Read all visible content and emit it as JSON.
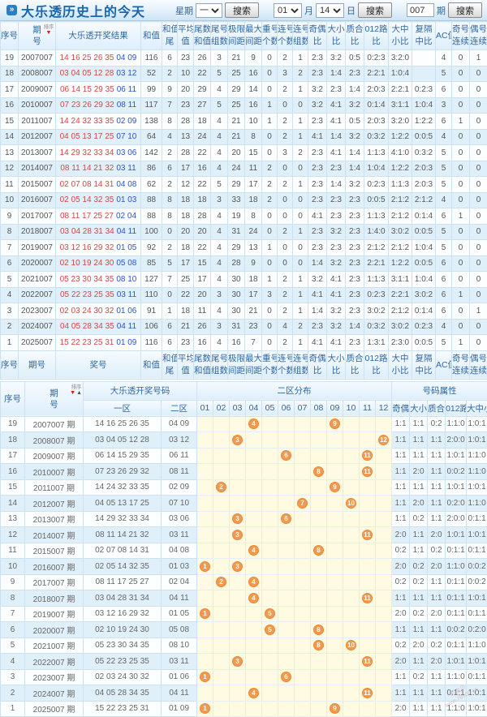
{
  "header": {
    "title": "大乐透历史上的今天",
    "week_label": "星期",
    "week_value": "一",
    "search_label": "搜索",
    "month_value": "01",
    "month_label": "月",
    "day_value": "14",
    "day_label": "日",
    "issue_value": "007",
    "issue_label": "期"
  },
  "icons": {
    "bullet": "»",
    "sort_down": "▼",
    "sort_up": "▲"
  },
  "table1": {
    "seq_header": "序号",
    "issue_header_top": "期",
    "issue_header_bottom": "号",
    "sort_label": "排序",
    "result_header": "大乐透开奖结果",
    "sum_header": "和值",
    "pair_headers": [
      [
        "和值",
        "尾"
      ],
      [
        "平均",
        "值"
      ],
      [
        "尾数",
        "和值"
      ],
      [
        "尾号",
        "组数"
      ],
      [
        "极限",
        "间距"
      ],
      [
        "最大",
        "间距"
      ],
      [
        "重号",
        "个数"
      ],
      [
        "连号",
        "个数"
      ],
      [
        "连号",
        "组数"
      ],
      [
        "奇偶",
        "比"
      ],
      [
        "大小",
        "比"
      ],
      [
        "质合",
        "比"
      ],
      [
        "012路",
        "比"
      ],
      [
        "大中",
        "小比"
      ],
      [
        "复隔",
        "中比"
      ],
      [
        "AC值",
        ""
      ],
      [
        "奇号",
        "连续"
      ],
      [
        "偶号",
        "连续"
      ]
    ],
    "footer": {
      "seq": "序号",
      "issue": "期号",
      "result": "奖号",
      "sum": "和值"
    },
    "rows": [
      {
        "seq": "19",
        "issue": "2007007",
        "front": "14 16 25 26 35",
        "back": "04 09",
        "vals": [
          "116",
          "6",
          "23",
          "26",
          "3",
          "21",
          "9",
          "0",
          "2",
          "1",
          "2:3",
          "3:2",
          "0:5",
          "0:2:3",
          "3:2:0",
          "",
          "4",
          "0",
          "1"
        ]
      },
      {
        "seq": "18",
        "issue": "2008007",
        "front": "03 04 05 12 28",
        "back": "03 12",
        "vals": [
          "52",
          "2",
          "10",
          "22",
          "5",
          "25",
          "16",
          "0",
          "3",
          "2",
          "2:3",
          "1:4",
          "2:3",
          "2:2:1",
          "1:0:4",
          "",
          "5",
          "0",
          "0"
        ]
      },
      {
        "seq": "17",
        "issue": "2009007",
        "front": "06 14 15 29 35",
        "back": "06 11",
        "vals": [
          "99",
          "9",
          "20",
          "29",
          "4",
          "29",
          "14",
          "0",
          "2",
          "1",
          "3:2",
          "2:3",
          "1:4",
          "2:0:3",
          "2:2:1",
          "0:2:3",
          "6",
          "0",
          "0"
        ]
      },
      {
        "seq": "16",
        "issue": "2010007",
        "front": "07 23 26 29 32",
        "back": "08 11",
        "vals": [
          "117",
          "7",
          "23",
          "27",
          "5",
          "25",
          "16",
          "1",
          "0",
          "0",
          "3:2",
          "4:1",
          "3:2",
          "0:1:4",
          "3:1:1",
          "1:0:4",
          "3",
          "0",
          "0"
        ]
      },
      {
        "seq": "15",
        "issue": "2011007",
        "front": "14 24 32 33 35",
        "back": "02 09",
        "vals": [
          "138",
          "8",
          "28",
          "18",
          "4",
          "21",
          "10",
          "1",
          "2",
          "1",
          "2:3",
          "4:1",
          "0:5",
          "2:0:3",
          "3:2:0",
          "1:2:2",
          "6",
          "1",
          "0"
        ]
      },
      {
        "seq": "14",
        "issue": "2012007",
        "front": "04 05 13 17 25",
        "back": "07 10",
        "vals": [
          "64",
          "4",
          "13",
          "24",
          "4",
          "21",
          "8",
          "0",
          "2",
          "1",
          "4:1",
          "1:4",
          "3:2",
          "0:3:2",
          "1:2:2",
          "0:0:5",
          "4",
          "0",
          "0"
        ]
      },
      {
        "seq": "13",
        "issue": "2013007",
        "front": "14 29 32 33 34",
        "back": "03 06",
        "vals": [
          "142",
          "2",
          "28",
          "22",
          "4",
          "20",
          "15",
          "0",
          "3",
          "2",
          "2:3",
          "4:1",
          "1:4",
          "1:1:3",
          "4:1:0",
          "0:3:2",
          "5",
          "0",
          "0"
        ]
      },
      {
        "seq": "12",
        "issue": "2014007",
        "front": "08 11 14 21 32",
        "back": "03 11",
        "vals": [
          "86",
          "6",
          "17",
          "16",
          "4",
          "24",
          "11",
          "2",
          "0",
          "0",
          "2:3",
          "2:3",
          "1:4",
          "1:0:4",
          "1:2:2",
          "2:0:3",
          "5",
          "0",
          "0"
        ]
      },
      {
        "seq": "11",
        "issue": "2015007",
        "front": "02 07 08 14 31",
        "back": "04 08",
        "vals": [
          "62",
          "2",
          "12",
          "22",
          "5",
          "29",
          "17",
          "2",
          "2",
          "1",
          "2:3",
          "1:4",
          "3:2",
          "0:2:3",
          "1:1:3",
          "2:0:3",
          "5",
          "0",
          "0"
        ]
      },
      {
        "seq": "10",
        "issue": "2016007",
        "front": "02 05 14 32 35",
        "back": "01 03",
        "vals": [
          "88",
          "8",
          "18",
          "18",
          "3",
          "33",
          "18",
          "2",
          "0",
          "0",
          "2:3",
          "2:3",
          "2:3",
          "0:0:5",
          "2:1:2",
          "2:1:2",
          "4",
          "0",
          "0"
        ]
      },
      {
        "seq": "9",
        "issue": "2017007",
        "front": "08 11 17 25 27",
        "back": "02 04",
        "vals": [
          "88",
          "8",
          "18",
          "28",
          "4",
          "19",
          "8",
          "0",
          "0",
          "0",
          "4:1",
          "2:3",
          "2:3",
          "1:1:3",
          "2:1:2",
          "0:1:4",
          "6",
          "1",
          "0"
        ]
      },
      {
        "seq": "8",
        "issue": "2018007",
        "front": "03 04 28 31 34",
        "back": "04 11",
        "vals": [
          "100",
          "0",
          "20",
          "20",
          "4",
          "31",
          "24",
          "0",
          "2",
          "1",
          "2:3",
          "3:2",
          "2:3",
          "1:4:0",
          "3:0:2",
          "0:0:5",
          "5",
          "0",
          "0"
        ]
      },
      {
        "seq": "7",
        "issue": "2019007",
        "front": "03 12 16 29 32",
        "back": "01 05",
        "vals": [
          "92",
          "2",
          "18",
          "22",
          "4",
          "29",
          "13",
          "1",
          "0",
          "0",
          "2:3",
          "2:3",
          "2:3",
          "2:1:2",
          "2:1:2",
          "1:0:4",
          "5",
          "0",
          "0"
        ]
      },
      {
        "seq": "6",
        "issue": "2020007",
        "front": "02 10 19 24 30",
        "back": "05 08",
        "vals": [
          "85",
          "5",
          "17",
          "15",
          "4",
          "28",
          "9",
          "0",
          "0",
          "0",
          "1:4",
          "3:2",
          "2:3",
          "2:2:1",
          "1:2:2",
          "0:0:5",
          "6",
          "0",
          "0"
        ]
      },
      {
        "seq": "5",
        "issue": "2021007",
        "front": "05 23 30 34 35",
        "back": "08 10",
        "vals": [
          "127",
          "7",
          "25",
          "17",
          "4",
          "30",
          "18",
          "1",
          "2",
          "1",
          "3:2",
          "4:1",
          "2:3",
          "1:1:3",
          "3:1:1",
          "1:0:4",
          "6",
          "0",
          "0"
        ]
      },
      {
        "seq": "4",
        "issue": "2022007",
        "front": "05 22 23 25 35",
        "back": "03 11",
        "vals": [
          "110",
          "0",
          "22",
          "20",
          "3",
          "30",
          "17",
          "3",
          "2",
          "1",
          "4:1",
          "4:1",
          "2:3",
          "0:2:3",
          "2:2:1",
          "3:0:2",
          "6",
          "1",
          "0"
        ]
      },
      {
        "seq": "3",
        "issue": "2023007",
        "front": "02 03 24 30 32",
        "back": "01 06",
        "vals": [
          "91",
          "1",
          "18",
          "11",
          "4",
          "30",
          "21",
          "0",
          "2",
          "1",
          "1:4",
          "3:2",
          "2:3",
          "3:0:2",
          "2:1:2",
          "0:1:4",
          "6",
          "0",
          "1"
        ]
      },
      {
        "seq": "2",
        "issue": "2024007",
        "front": "04 05 28 34 35",
        "back": "04 11",
        "vals": [
          "106",
          "6",
          "21",
          "26",
          "3",
          "31",
          "23",
          "0",
          "4",
          "2",
          "2:3",
          "3:2",
          "1:4",
          "0:3:2",
          "3:0:2",
          "0:2:3",
          "4",
          "0",
          "0"
        ]
      },
      {
        "seq": "1",
        "issue": "2025007",
        "front": "15 22 23 25 31",
        "back": "01 09",
        "vals": [
          "116",
          "6",
          "23",
          "16",
          "4",
          "16",
          "7",
          "0",
          "2",
          "1",
          "4:1",
          "4:1",
          "2:3",
          "1:3:1",
          "2:3:0",
          "0:0:5",
          "5",
          "1",
          "0"
        ]
      }
    ]
  },
  "table2": {
    "seq_header": "序号",
    "issue_header_top": "期",
    "issue_header_bottom": "号",
    "sort_label": "排序",
    "numbers_group": "大乐透开奖号码",
    "dist_group": "二区分布",
    "attr_group": "号码属性",
    "zone1_header": "一区",
    "zone2_header": "二区",
    "dist_cols": [
      "01",
      "02",
      "03",
      "04",
      "05",
      "06",
      "07",
      "08",
      "09",
      "10",
      "11",
      "12"
    ],
    "attr_headers": [
      "奇偶比",
      "大小比",
      "质合比",
      "012路比",
      "大中小比"
    ],
    "rows": [
      {
        "seq": "19",
        "issue": "2007007 期",
        "zone1": "14 16 25 26 35",
        "zone2": "04 09",
        "balls": [
          4,
          9
        ],
        "attrs": [
          "1:1",
          "1:1",
          "0:2",
          "1:1:0",
          "1:0:1"
        ]
      },
      {
        "seq": "18",
        "issue": "2008007 期",
        "zone1": "03 04 05 12 28",
        "zone2": "03 12",
        "balls": [
          3,
          12
        ],
        "attrs": [
          "1:1",
          "1:1",
          "1:1",
          "2:0:0",
          "1:0:1"
        ]
      },
      {
        "seq": "17",
        "issue": "2009007 期",
        "zone1": "06 14 15 29 35",
        "zone2": "06 11",
        "balls": [
          6,
          11
        ],
        "attrs": [
          "1:1",
          "1:1",
          "1:1",
          "1:0:1",
          "1:1:0"
        ]
      },
      {
        "seq": "16",
        "issue": "2010007 期",
        "zone1": "07 23 26 29 32",
        "zone2": "08 11",
        "balls": [
          8,
          11
        ],
        "attrs": [
          "1:1",
          "2:0",
          "1:1",
          "0:0:2",
          "1:1:0"
        ]
      },
      {
        "seq": "15",
        "issue": "2011007 期",
        "zone1": "14 24 32 33 35",
        "zone2": "02 09",
        "balls": [
          2,
          9
        ],
        "attrs": [
          "1:1",
          "1:1",
          "1:1",
          "1:0:1",
          "1:0:1"
        ]
      },
      {
        "seq": "14",
        "issue": "2012007 期",
        "zone1": "04 05 13 17 25",
        "zone2": "07 10",
        "balls": [
          7,
          10
        ],
        "attrs": [
          "1:1",
          "2:0",
          "1:1",
          "0:2:0",
          "1:1:0"
        ]
      },
      {
        "seq": "13",
        "issue": "2013007 期",
        "zone1": "14 29 32 33 34",
        "zone2": "03 06",
        "balls": [
          3,
          6
        ],
        "attrs": [
          "1:1",
          "0:2",
          "1:1",
          "2:0:0",
          "0:1:1"
        ]
      },
      {
        "seq": "12",
        "issue": "2014007 期",
        "zone1": "08 11 14 21 32",
        "zone2": "03 11",
        "balls": [
          3,
          11
        ],
        "attrs": [
          "2:0",
          "1:1",
          "2:0",
          "1:0:1",
          "1:0:1"
        ]
      },
      {
        "seq": "11",
        "issue": "2015007 期",
        "zone1": "02 07 08 14 31",
        "zone2": "04 08",
        "balls": [
          4,
          8
        ],
        "attrs": [
          "0:2",
          "1:1",
          "0:2",
          "0:1:1",
          "0:1:1"
        ]
      },
      {
        "seq": "10",
        "issue": "2016007 期",
        "zone1": "02 05 14 32 35",
        "zone2": "01 03",
        "balls": [
          1,
          3
        ],
        "attrs": [
          "2:0",
          "0:2",
          "2:0",
          "1:1:0",
          "0:0:2"
        ]
      },
      {
        "seq": "9",
        "issue": "2017007 期",
        "zone1": "08 11 17 25 27",
        "zone2": "02 04",
        "balls": [
          2,
          4
        ],
        "attrs": [
          "0:2",
          "0:2",
          "1:1",
          "0:1:1",
          "0:0:2"
        ]
      },
      {
        "seq": "8",
        "issue": "2018007 期",
        "zone1": "03 04 28 31 34",
        "zone2": "04 11",
        "balls": [
          4,
          11
        ],
        "attrs": [
          "1:1",
          "1:1",
          "1:1",
          "0:1:1",
          "1:0:1"
        ]
      },
      {
        "seq": "7",
        "issue": "2019007 期",
        "zone1": "03 12 16 29 32",
        "zone2": "01 05",
        "balls": [
          1,
          5
        ],
        "attrs": [
          "2:0",
          "0:2",
          "2:0",
          "0:1:1",
          "0:1:1"
        ]
      },
      {
        "seq": "6",
        "issue": "2020007 期",
        "zone1": "02 10 19 24 30",
        "zone2": "05 08",
        "balls": [
          5,
          8
        ],
        "attrs": [
          "1:1",
          "1:1",
          "1:1",
          "0:0:2",
          "0:2:0"
        ]
      },
      {
        "seq": "5",
        "issue": "2021007 期",
        "zone1": "05 23 30 34 35",
        "zone2": "08 10",
        "balls": [
          8,
          10
        ],
        "attrs": [
          "0:2",
          "2:0",
          "0:2",
          "0:1:1",
          "1:1:0"
        ]
      },
      {
        "seq": "4",
        "issue": "2022007 期",
        "zone1": "05 22 23 25 35",
        "zone2": "03 11",
        "balls": [
          3,
          11
        ],
        "attrs": [
          "2:0",
          "1:1",
          "2:0",
          "1:0:1",
          "1:0:1"
        ]
      },
      {
        "seq": "3",
        "issue": "2023007 期",
        "zone1": "02 03 24 30 32",
        "zone2": "01 06",
        "balls": [
          1,
          6
        ],
        "attrs": [
          "1:1",
          "0:2",
          "1:1",
          "1:1:0",
          "0:1:1"
        ]
      },
      {
        "seq": "2",
        "issue": "2024007 期",
        "zone1": "04 05 28 34 35",
        "zone2": "04 11",
        "balls": [
          4,
          11
        ],
        "attrs": [
          "1:1",
          "1:1",
          "1:1",
          "0:1:1",
          "1:0:1"
        ]
      },
      {
        "seq": "1",
        "issue": "2025007 期",
        "zone1": "15 22 23 25 31",
        "zone2": "01 09",
        "balls": [
          1,
          9
        ],
        "attrs": [
          "2:0",
          "1:1",
          "1:1",
          "1:1:0",
          "1:0:1"
        ]
      }
    ]
  },
  "watermark": {
    "line1": "彩宝贝",
    "line2": "www.78500.cn"
  }
}
